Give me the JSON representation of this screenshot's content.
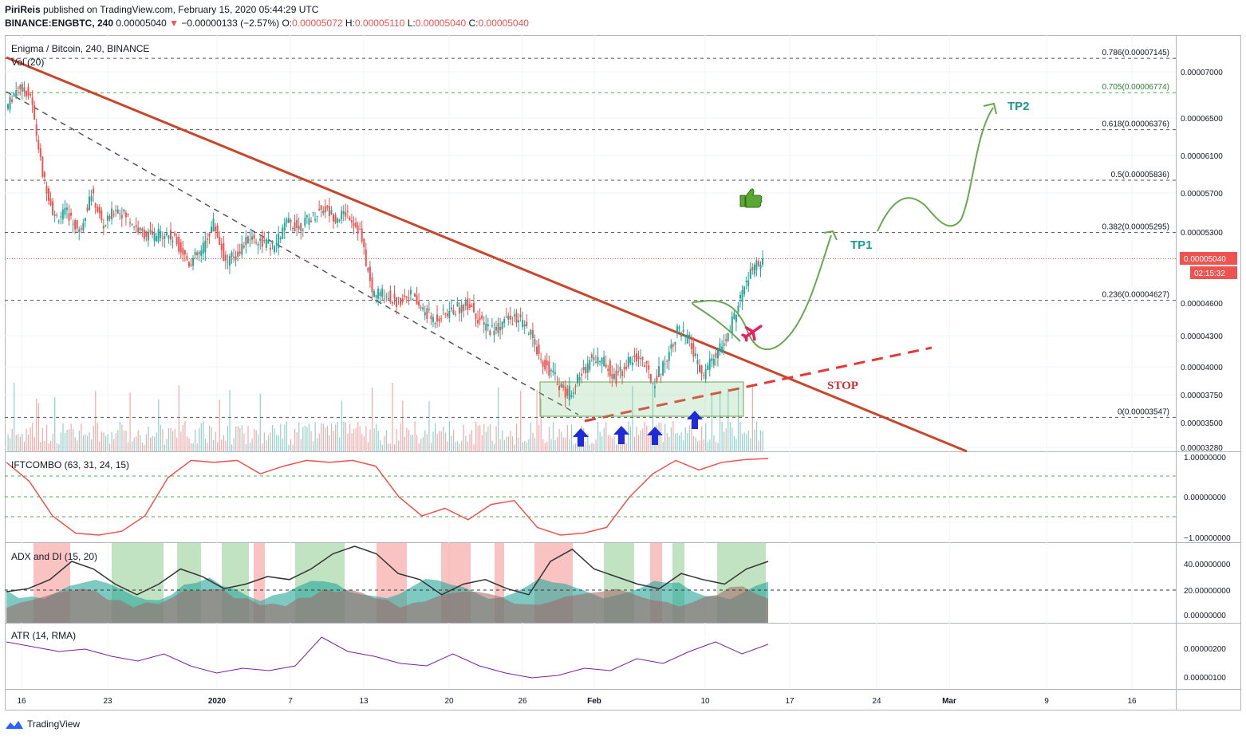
{
  "header": {
    "author": "PiriReis",
    "published_text": "published on TradingView.com, February 15, 2020 05:44:29 UTC",
    "symbol": "BINANCE:ENGBTC, 240",
    "last": "0.00005040",
    "change": "−0.00000133 (−2.57%)",
    "o_label": "O:",
    "o": "0.00005072",
    "h_label": "H:",
    "h": "0.00005110",
    "l_label": "L:",
    "l": "0.00005040",
    "c_label": "C:",
    "c": "0.00005040"
  },
  "footer": {
    "brand": "TradingView"
  },
  "panes": {
    "main_title": "Enigma / Bitcoin, 240, BINANCE",
    "vol_label": "Vol (20)",
    "ift_label": "IFTCOMBO (63, 31, 24, 15)",
    "adx_label": "ADX and DI (15, 20)",
    "atr_label": "ATR (14, RMA)"
  },
  "colors": {
    "up": "#26a69a",
    "down": "#ef5350",
    "trend": "#c8472b",
    "stop": "#e53935",
    "arrow": "#1e2bd6",
    "green_path": "#6aa84f",
    "teal_text": "#1b998b"
  },
  "chart_data": {
    "type": "line",
    "title": "Enigma / Bitcoin, 240, BINANCE",
    "y_ticks_main": [
      "0.00007000",
      "0.00006500",
      "0.00006100",
      "0.00005700",
      "0.00005300",
      "0.00005040",
      "0.00004600",
      "0.00004300",
      "0.00004000",
      "0.00003750",
      "0.00003500",
      "0.00003280"
    ],
    "x_ticks": [
      "16",
      "23",
      "2020",
      "7",
      "13",
      "20",
      "26",
      "Feb",
      "10",
      "17",
      "24",
      "Mar",
      "9",
      "16"
    ],
    "last_price_label": "0.00005040",
    "countdown_label": "02:15:32",
    "fib_levels": [
      {
        "label": "0.786(0.00007145)",
        "value": 7.145e-05
      },
      {
        "label": "0.705(0.00006774)",
        "value": 6.774e-05
      },
      {
        "label": "0.618(0.00006376)",
        "value": 6.376e-05
      },
      {
        "label": "0.5(0.00005836)",
        "value": 5.836e-05
      },
      {
        "label": "0.382(0.00005295)",
        "value": 5.295e-05
      },
      {
        "label": "0.236(0.00004627)",
        "value": 4.627e-05
      },
      {
        "label": "0(0.00003547)",
        "value": 3.547e-05
      }
    ],
    "price_path": [
      [
        "Dec 15",
        6.6e-05
      ],
      [
        "Dec 16",
        6.85e-05
      ],
      [
        "Dec 17",
        6.75e-05
      ],
      [
        "Dec 18",
        5.9e-05
      ],
      [
        "Dec 19",
        5.45e-05
      ],
      [
        "Dec 20",
        5.5e-05
      ],
      [
        "Dec 21",
        5.3e-05
      ],
      [
        "Dec 22",
        5.7e-05
      ],
      [
        "Dec 23",
        5.35e-05
      ],
      [
        "Dec 24",
        5.55e-05
      ],
      [
        "Dec 25",
        5.45e-05
      ],
      [
        "Dec 26",
        5.3e-05
      ],
      [
        "Dec 27",
        5.25e-05
      ],
      [
        "Dec 28",
        5.3e-05
      ],
      [
        "Dec 29",
        5.2e-05
      ],
      [
        "Dec 30",
        5e-05
      ],
      [
        "Dec 31",
        5.1e-05
      ],
      [
        "Jan 1",
        5.4e-05
      ],
      [
        "Jan 2",
        5e-05
      ],
      [
        "Jan 3",
        5.1e-05
      ],
      [
        "Jan 4",
        5.25e-05
      ],
      [
        "Jan 5",
        5.2e-05
      ],
      [
        "Jan 6",
        5.15e-05
      ],
      [
        "Jan 7",
        5.4e-05
      ],
      [
        "Jan 8",
        5.35e-05
      ],
      [
        "Jan 9",
        5.45e-05
      ],
      [
        "Jan 10",
        5.55e-05
      ],
      [
        "Jan 11",
        5.45e-05
      ],
      [
        "Jan 12",
        5.5e-05
      ],
      [
        "Jan 13",
        5.3e-05
      ],
      [
        "Jan 14",
        4.7e-05
      ],
      [
        "Jan 15",
        4.7e-05
      ],
      [
        "Jan 16",
        4.6e-05
      ],
      [
        "Jan 17",
        4.7e-05
      ],
      [
        "Jan 18",
        4.55e-05
      ],
      [
        "Jan 19",
        4.45e-05
      ],
      [
        "Jan 20",
        4.5e-05
      ],
      [
        "Jan 21",
        4.55e-05
      ],
      [
        "Jan 22",
        4.6e-05
      ],
      [
        "Jan 23",
        4.4e-05
      ],
      [
        "Jan 24",
        4.35e-05
      ],
      [
        "Jan 25",
        4.45e-05
      ],
      [
        "Jan 26",
        4.45e-05
      ],
      [
        "Jan 27",
        4.3e-05
      ],
      [
        "Jan 28",
        4.05e-05
      ],
      [
        "Jan 29",
        3.9e-05
      ],
      [
        "Jan 30",
        3.75e-05
      ],
      [
        "Jan 31",
        3.9e-05
      ],
      [
        "Feb 1",
        4.1e-05
      ],
      [
        "Feb 2",
        4.05e-05
      ],
      [
        "Feb 3",
        3.9e-05
      ],
      [
        "Feb 4",
        4.05e-05
      ],
      [
        "Feb 5",
        4.1e-05
      ],
      [
        "Feb 6",
        3.85e-05
      ],
      [
        "Feb 7",
        4.05e-05
      ],
      [
        "Feb 8",
        4.35e-05
      ],
      [
        "Feb 9",
        4.25e-05
      ],
      [
        "Feb 10",
        3.9e-05
      ],
      [
        "Feb 11",
        4.1e-05
      ],
      [
        "Feb 12",
        4.25e-05
      ],
      [
        "Feb 13",
        4.6e-05
      ],
      [
        "Feb 14",
        4.9e-05
      ],
      [
        "Feb 15",
        5.04e-05
      ]
    ],
    "indicators": {
      "ift_ticks": [
        "1.00000000",
        "0.00000000",
        "−1.00000000"
      ],
      "adx_ticks": [
        "40.00000000",
        "20.00000000",
        "0.00000000"
      ],
      "atr_ticks": [
        "0.00000200",
        "0.00000100"
      ]
    },
    "annotations": {
      "tp1": "TP1",
      "tp2": "TP2",
      "stop": "STOP"
    }
  }
}
